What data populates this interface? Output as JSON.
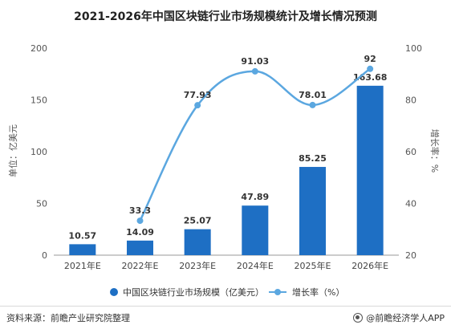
{
  "title": "2021-2026年中国区块链行业市场规模统计及增长情况预测",
  "source": "资料来源：前瞻产业研究院整理",
  "brand": "@前瞻经济学人APP",
  "colors": {
    "bar": "#1e6fc4",
    "line": "#5ba7e0",
    "grid": "#e3e3e3"
  },
  "chart_data": {
    "type": "bar",
    "categories": [
      "2021年E",
      "2022年E",
      "2023年E",
      "2024年E",
      "2025年E",
      "2026年E"
    ],
    "series": [
      {
        "name": "中国区块链行业市场规模（亿美元）",
        "type": "bar",
        "axis": "left",
        "values": [
          10.57,
          14.09,
          25.07,
          47.89,
          85.25,
          163.68
        ]
      },
      {
        "name": "增长率（%）",
        "type": "line",
        "axis": "right",
        "values": [
          null,
          33.3,
          77.93,
          91.03,
          78.01,
          92
        ]
      }
    ],
    "ylabel": "单位：亿美元",
    "y2label": "增长率：%",
    "ylim": [
      0,
      200
    ],
    "y2lim": [
      20,
      100
    ],
    "yticks": [
      0,
      50,
      100,
      150,
      200
    ],
    "y2ticks": [
      20,
      40,
      60,
      80,
      100
    ],
    "legend_position": "bottom",
    "grid": false
  }
}
